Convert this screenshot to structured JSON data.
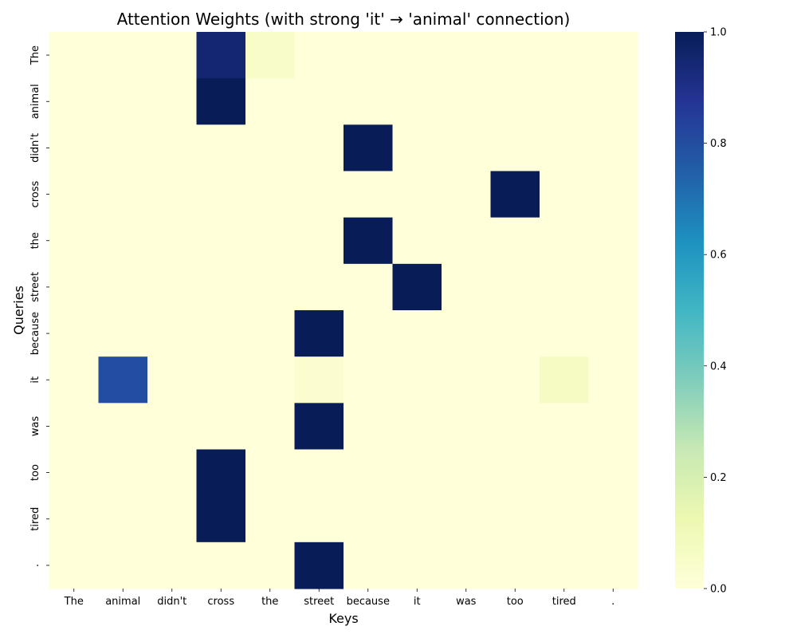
{
  "chart_data": {
    "type": "heatmap",
    "title": "Attention Weights (with strong 'it' → 'animal' connection)",
    "xlabel": "Keys",
    "ylabel": "Queries",
    "x_categories": [
      "The",
      "animal",
      "didn't",
      "cross",
      "the",
      "street",
      "because",
      "it",
      "was",
      "too",
      "tired",
      "."
    ],
    "y_categories": [
      "The",
      "animal",
      "didn't",
      "cross",
      "the",
      "street",
      "because",
      "it",
      "was",
      "too",
      "tired",
      "."
    ],
    "values": [
      [
        0,
        0,
        0,
        0.95,
        0.05,
        0,
        0,
        0,
        0,
        0,
        0,
        0
      ],
      [
        0,
        0,
        0,
        1.0,
        0,
        0,
        0,
        0,
        0,
        0,
        0,
        0
      ],
      [
        0,
        0,
        0,
        0,
        0,
        0,
        1.0,
        0,
        0,
        0,
        0,
        0
      ],
      [
        0,
        0,
        0,
        0,
        0,
        0,
        0,
        0,
        0,
        1.0,
        0,
        0
      ],
      [
        0,
        0,
        0,
        0,
        0,
        0,
        1.0,
        0,
        0,
        0,
        0,
        0
      ],
      [
        0,
        0,
        0,
        0,
        0,
        0,
        0,
        1.0,
        0,
        0,
        0,
        0
      ],
      [
        0,
        0,
        0,
        0,
        0,
        1.0,
        0,
        0,
        0,
        0,
        0,
        0
      ],
      [
        0,
        0.8,
        0,
        0,
        0,
        0.03,
        0,
        0,
        0,
        0,
        0.07,
        0
      ],
      [
        0,
        0,
        0,
        0,
        0,
        1.0,
        0,
        0,
        0,
        0,
        0,
        0
      ],
      [
        0,
        0,
        0,
        1.0,
        0,
        0,
        0,
        0,
        0,
        0,
        0,
        0
      ],
      [
        0,
        0,
        0,
        1.0,
        0,
        0,
        0,
        0,
        0,
        0,
        0,
        0
      ],
      [
        0,
        0,
        0,
        0,
        0,
        1.0,
        0,
        0,
        0,
        0,
        0,
        0
      ]
    ],
    "colormap": "YlGnBu",
    "colormap_stops": [
      "#ffffd9",
      "#edf8b1",
      "#c7e9b4",
      "#7fcdbb",
      "#41b6c4",
      "#1d91c0",
      "#225ea8",
      "#253494",
      "#081d58"
    ],
    "vmin": 0,
    "vmax": 1,
    "colorbar_ticks": [
      "0.0",
      "0.2",
      "0.4",
      "0.6",
      "0.8",
      "1.0"
    ],
    "grid": false
  }
}
